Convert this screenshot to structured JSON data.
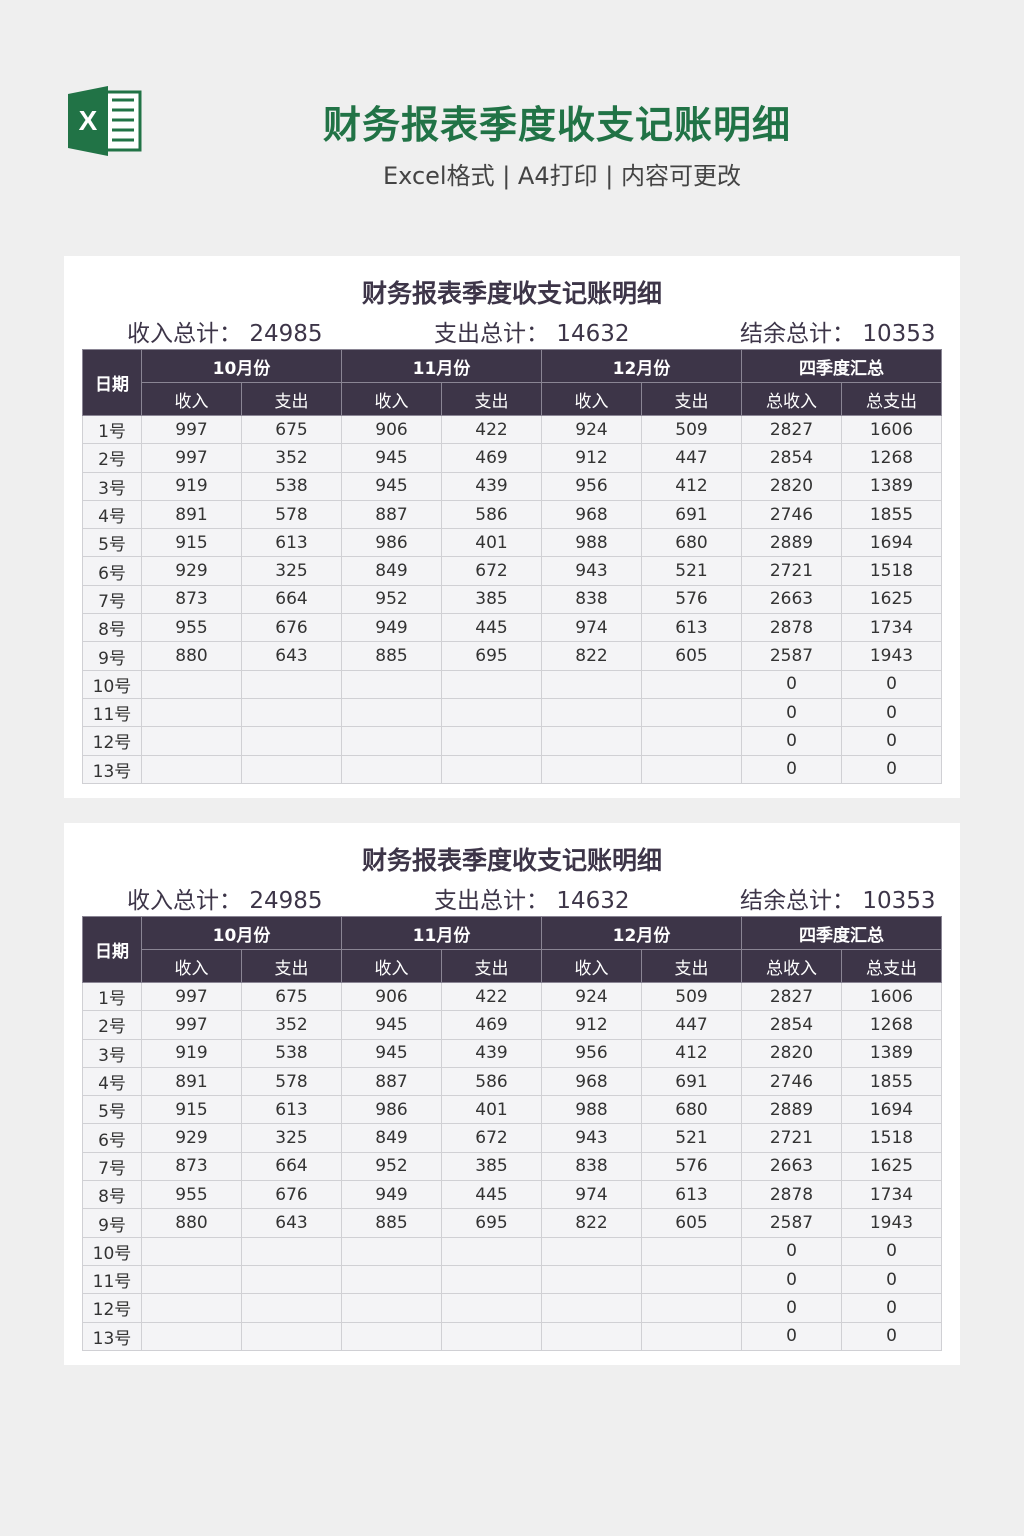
{
  "header": {
    "title": "财务报表季度收支记账明细",
    "subtitle": "Excel格式 | A4打印 | 内容可更改",
    "logo": "excel-logo",
    "accent": "#217346"
  },
  "sheet": {
    "title": "财务报表季度收支记账明细",
    "income_total_label": "收入总计：",
    "income_total": "24985",
    "expense_total_label": "支出总计：",
    "expense_total": "14632",
    "balance_total_label": "结余总计：",
    "balance_total": "10353",
    "date_header": "日期",
    "groups": [
      "10月份",
      "11月份",
      "12月份",
      "四季度汇总"
    ],
    "subheaders": [
      "收入",
      "支出",
      "收入",
      "支出",
      "收入",
      "支出",
      "总收入",
      "总支出"
    ],
    "header_color": "#3d3548",
    "rows": [
      [
        "1号",
        "997",
        "675",
        "906",
        "422",
        "924",
        "509",
        "2827",
        "1606"
      ],
      [
        "2号",
        "997",
        "352",
        "945",
        "469",
        "912",
        "447",
        "2854",
        "1268"
      ],
      [
        "3号",
        "919",
        "538",
        "945",
        "439",
        "956",
        "412",
        "2820",
        "1389"
      ],
      [
        "4号",
        "891",
        "578",
        "887",
        "586",
        "968",
        "691",
        "2746",
        "1855"
      ],
      [
        "5号",
        "915",
        "613",
        "986",
        "401",
        "988",
        "680",
        "2889",
        "1694"
      ],
      [
        "6号",
        "929",
        "325",
        "849",
        "672",
        "943",
        "521",
        "2721",
        "1518"
      ],
      [
        "7号",
        "873",
        "664",
        "952",
        "385",
        "838",
        "576",
        "2663",
        "1625"
      ],
      [
        "8号",
        "955",
        "676",
        "949",
        "445",
        "974",
        "613",
        "2878",
        "1734"
      ],
      [
        "9号",
        "880",
        "643",
        "885",
        "695",
        "822",
        "605",
        "2587",
        "1943"
      ],
      [
        "10号",
        "",
        "",
        "",
        "",
        "",
        "",
        "0",
        "0"
      ],
      [
        "11号",
        "",
        "",
        "",
        "",
        "",
        "",
        "0",
        "0"
      ],
      [
        "12号",
        "",
        "",
        "",
        "",
        "",
        "",
        "0",
        "0"
      ],
      [
        "13号",
        "",
        "",
        "",
        "",
        "",
        "",
        "0",
        "0"
      ]
    ]
  }
}
